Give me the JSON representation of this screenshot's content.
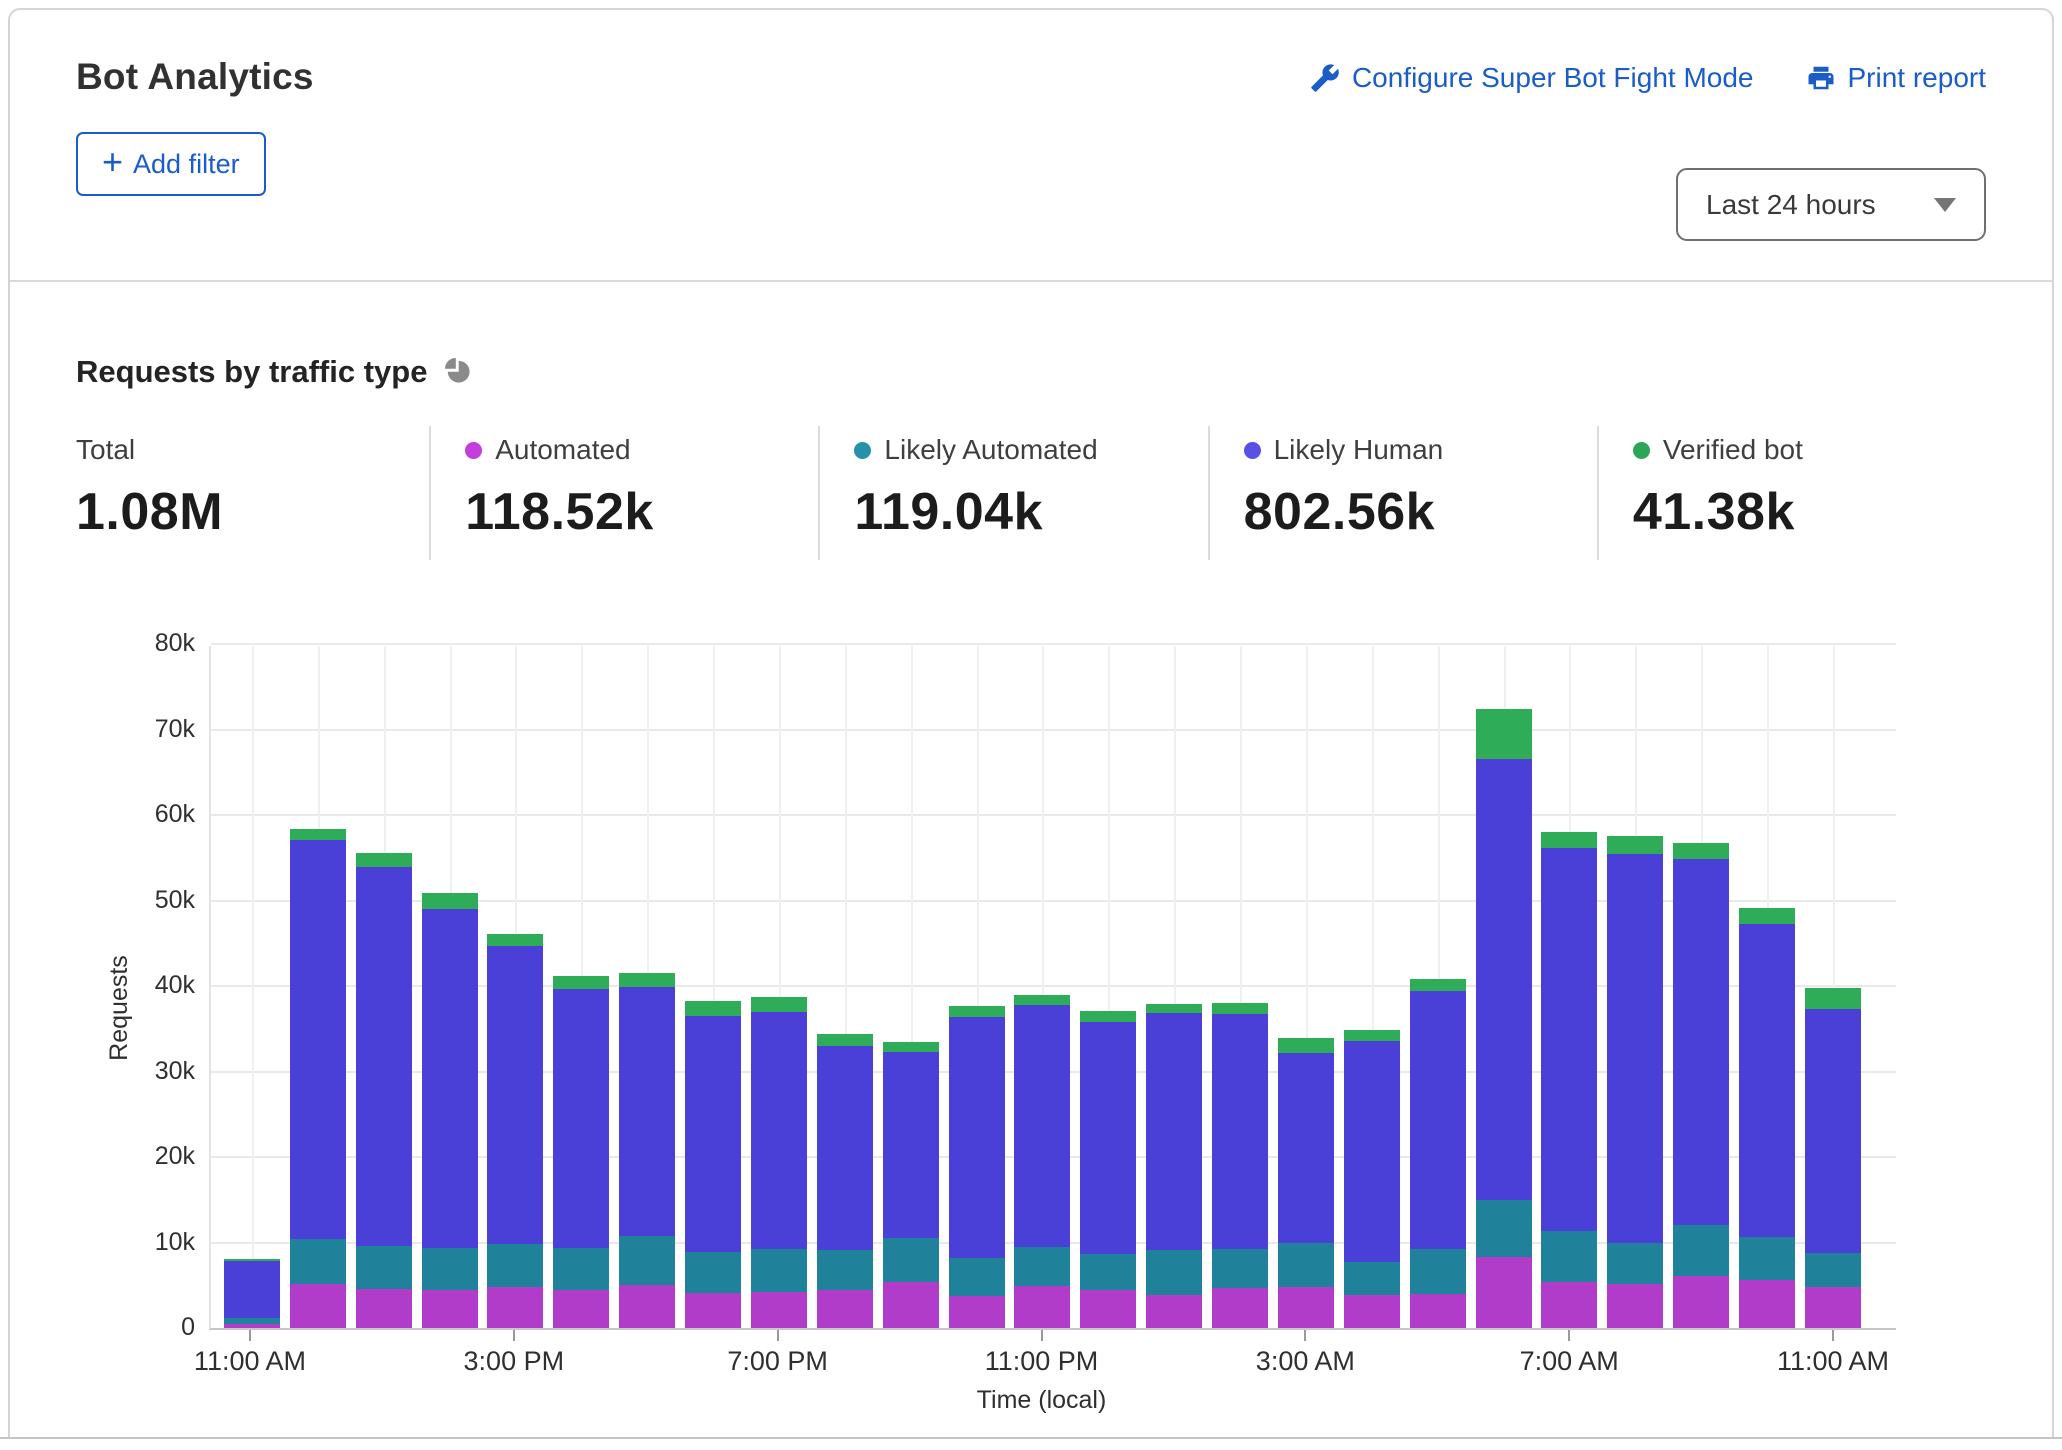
{
  "header": {
    "title": "Bot Analytics",
    "links": [
      {
        "label": "Configure Super Bot Fight Mode",
        "icon": "wrench-icon"
      },
      {
        "label": "Print report",
        "icon": "printer-icon"
      }
    ],
    "add_filter_label": "Add filter",
    "plus_glyph": "+",
    "time_range": "Last 24 hours"
  },
  "section": {
    "title": "Requests by traffic type",
    "icon": "pie-chart-icon"
  },
  "stats": [
    {
      "label": "Total",
      "value": "1.08M",
      "color": null
    },
    {
      "label": "Automated",
      "value": "118.52k",
      "color": "#c43ddf"
    },
    {
      "label": "Likely Automated",
      "value": "119.04k",
      "color": "#2691ab"
    },
    {
      "label": "Likely Human",
      "value": "802.56k",
      "color": "#5950e5"
    },
    {
      "label": "Verified bot",
      "value": "41.38k",
      "color": "#2ba656"
    }
  ],
  "colors": {
    "link_blue": "#1a5dc8",
    "automated": "#b13cc9",
    "likely_automated": "#20819a",
    "likely_human": "#4a40d8",
    "verified_bot": "#2fac58"
  },
  "chart_data": {
    "type": "bar",
    "stacked": true,
    "title": "Requests by traffic type",
    "xlabel": "Time (local)",
    "ylabel": "Requests",
    "unit": "k",
    "value_scale": 1000,
    "ylim": [
      0,
      80
    ],
    "grid": true,
    "y_ticks": [
      "0",
      "10k",
      "20k",
      "30k",
      "40k",
      "50k",
      "60k",
      "70k",
      "80k"
    ],
    "x_tick_every": 4,
    "x_tick_labels": [
      "11:00 AM",
      "3:00 PM",
      "7:00 PM",
      "11:00 PM",
      "3:00 AM",
      "7:00 AM",
      "11:00 AM"
    ],
    "x": [
      "11:00 AM",
      "12:00 PM",
      "1:00 PM",
      "2:00 PM",
      "3:00 PM",
      "4:00 PM",
      "5:00 PM",
      "6:00 PM",
      "7:00 PM",
      "8:00 PM",
      "9:00 PM",
      "10:00 PM",
      "11:00 PM",
      "12:00 AM",
      "1:00 AM",
      "2:00 AM",
      "3:00 AM",
      "4:00 AM",
      "5:00 AM",
      "6:00 AM",
      "7:00 AM",
      "8:00 AM",
      "9:00 AM",
      "10:00 AM",
      "11:00 AM"
    ],
    "series": [
      {
        "name": "Automated",
        "color": "#b13cc9",
        "values": [
          0.5,
          5.1,
          4.6,
          4.5,
          4.8,
          4.4,
          5.0,
          4.1,
          4.2,
          4.4,
          5.4,
          3.7,
          4.9,
          4.4,
          3.9,
          4.7,
          4.8,
          3.9,
          4.0,
          8.3,
          5.4,
          5.1,
          6.1,
          5.6,
          4.8
        ]
      },
      {
        "name": "Likely Automated",
        "color": "#20819a",
        "values": [
          0.7,
          5.3,
          5.0,
          4.9,
          5.0,
          5.0,
          5.8,
          4.8,
          5.0,
          4.7,
          5.1,
          4.5,
          4.6,
          4.2,
          5.2,
          4.6,
          5.1,
          3.8,
          5.3,
          6.7,
          5.9,
          4.9,
          6.0,
          5.0,
          4.0
        ]
      },
      {
        "name": "Likely Human",
        "color": "#4a40d8",
        "values": [
          6.6,
          46.7,
          44.3,
          39.6,
          34.9,
          30.2,
          29.1,
          27.6,
          27.8,
          23.9,
          21.8,
          28.2,
          28.3,
          27.2,
          27.7,
          27.4,
          22.3,
          25.9,
          30.1,
          51.5,
          44.8,
          45.4,
          42.7,
          36.6,
          28.5
        ]
      },
      {
        "name": "Verified bot",
        "color": "#2fac58",
        "values": [
          0.3,
          1.3,
          1.7,
          1.9,
          1.4,
          1.6,
          1.6,
          1.7,
          1.7,
          1.4,
          1.2,
          1.3,
          1.2,
          1.3,
          1.1,
          1.3,
          1.7,
          1.2,
          1.4,
          5.9,
          1.9,
          2.2,
          1.9,
          1.9,
          2.5
        ]
      }
    ]
  }
}
